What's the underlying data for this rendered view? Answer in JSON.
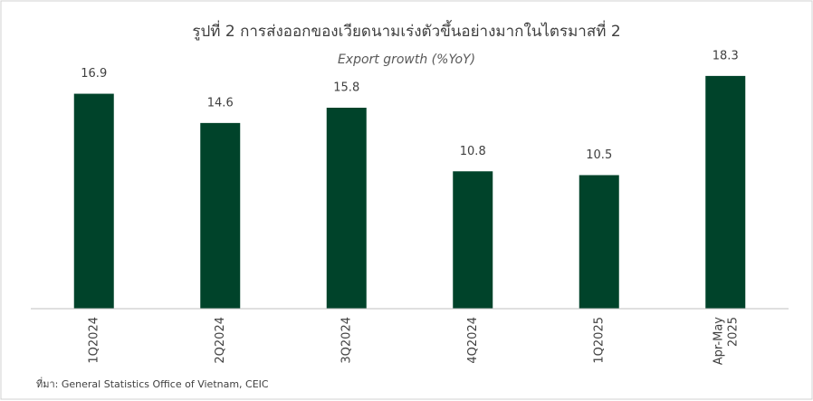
{
  "chart_data": {
    "type": "bar",
    "title": "รูปที่ 2 การส่งออกของเวียดนามเร่งตัวขึ้นอย่างมากในไตรมาสที่  2",
    "subtitle": "Export growth (%YoY)",
    "categories": [
      "1Q2024",
      "2Q2024",
      "3Q2024",
      "4Q2024",
      "1Q2025",
      "Apr-May 2025"
    ],
    "values": [
      16.9,
      14.6,
      15.8,
      10.8,
      10.5,
      18.3
    ],
    "color": "#00432a",
    "ylim": [
      0,
      20
    ],
    "source": "ที่มา: General Statistics Office of Vietnam, CEIC"
  }
}
